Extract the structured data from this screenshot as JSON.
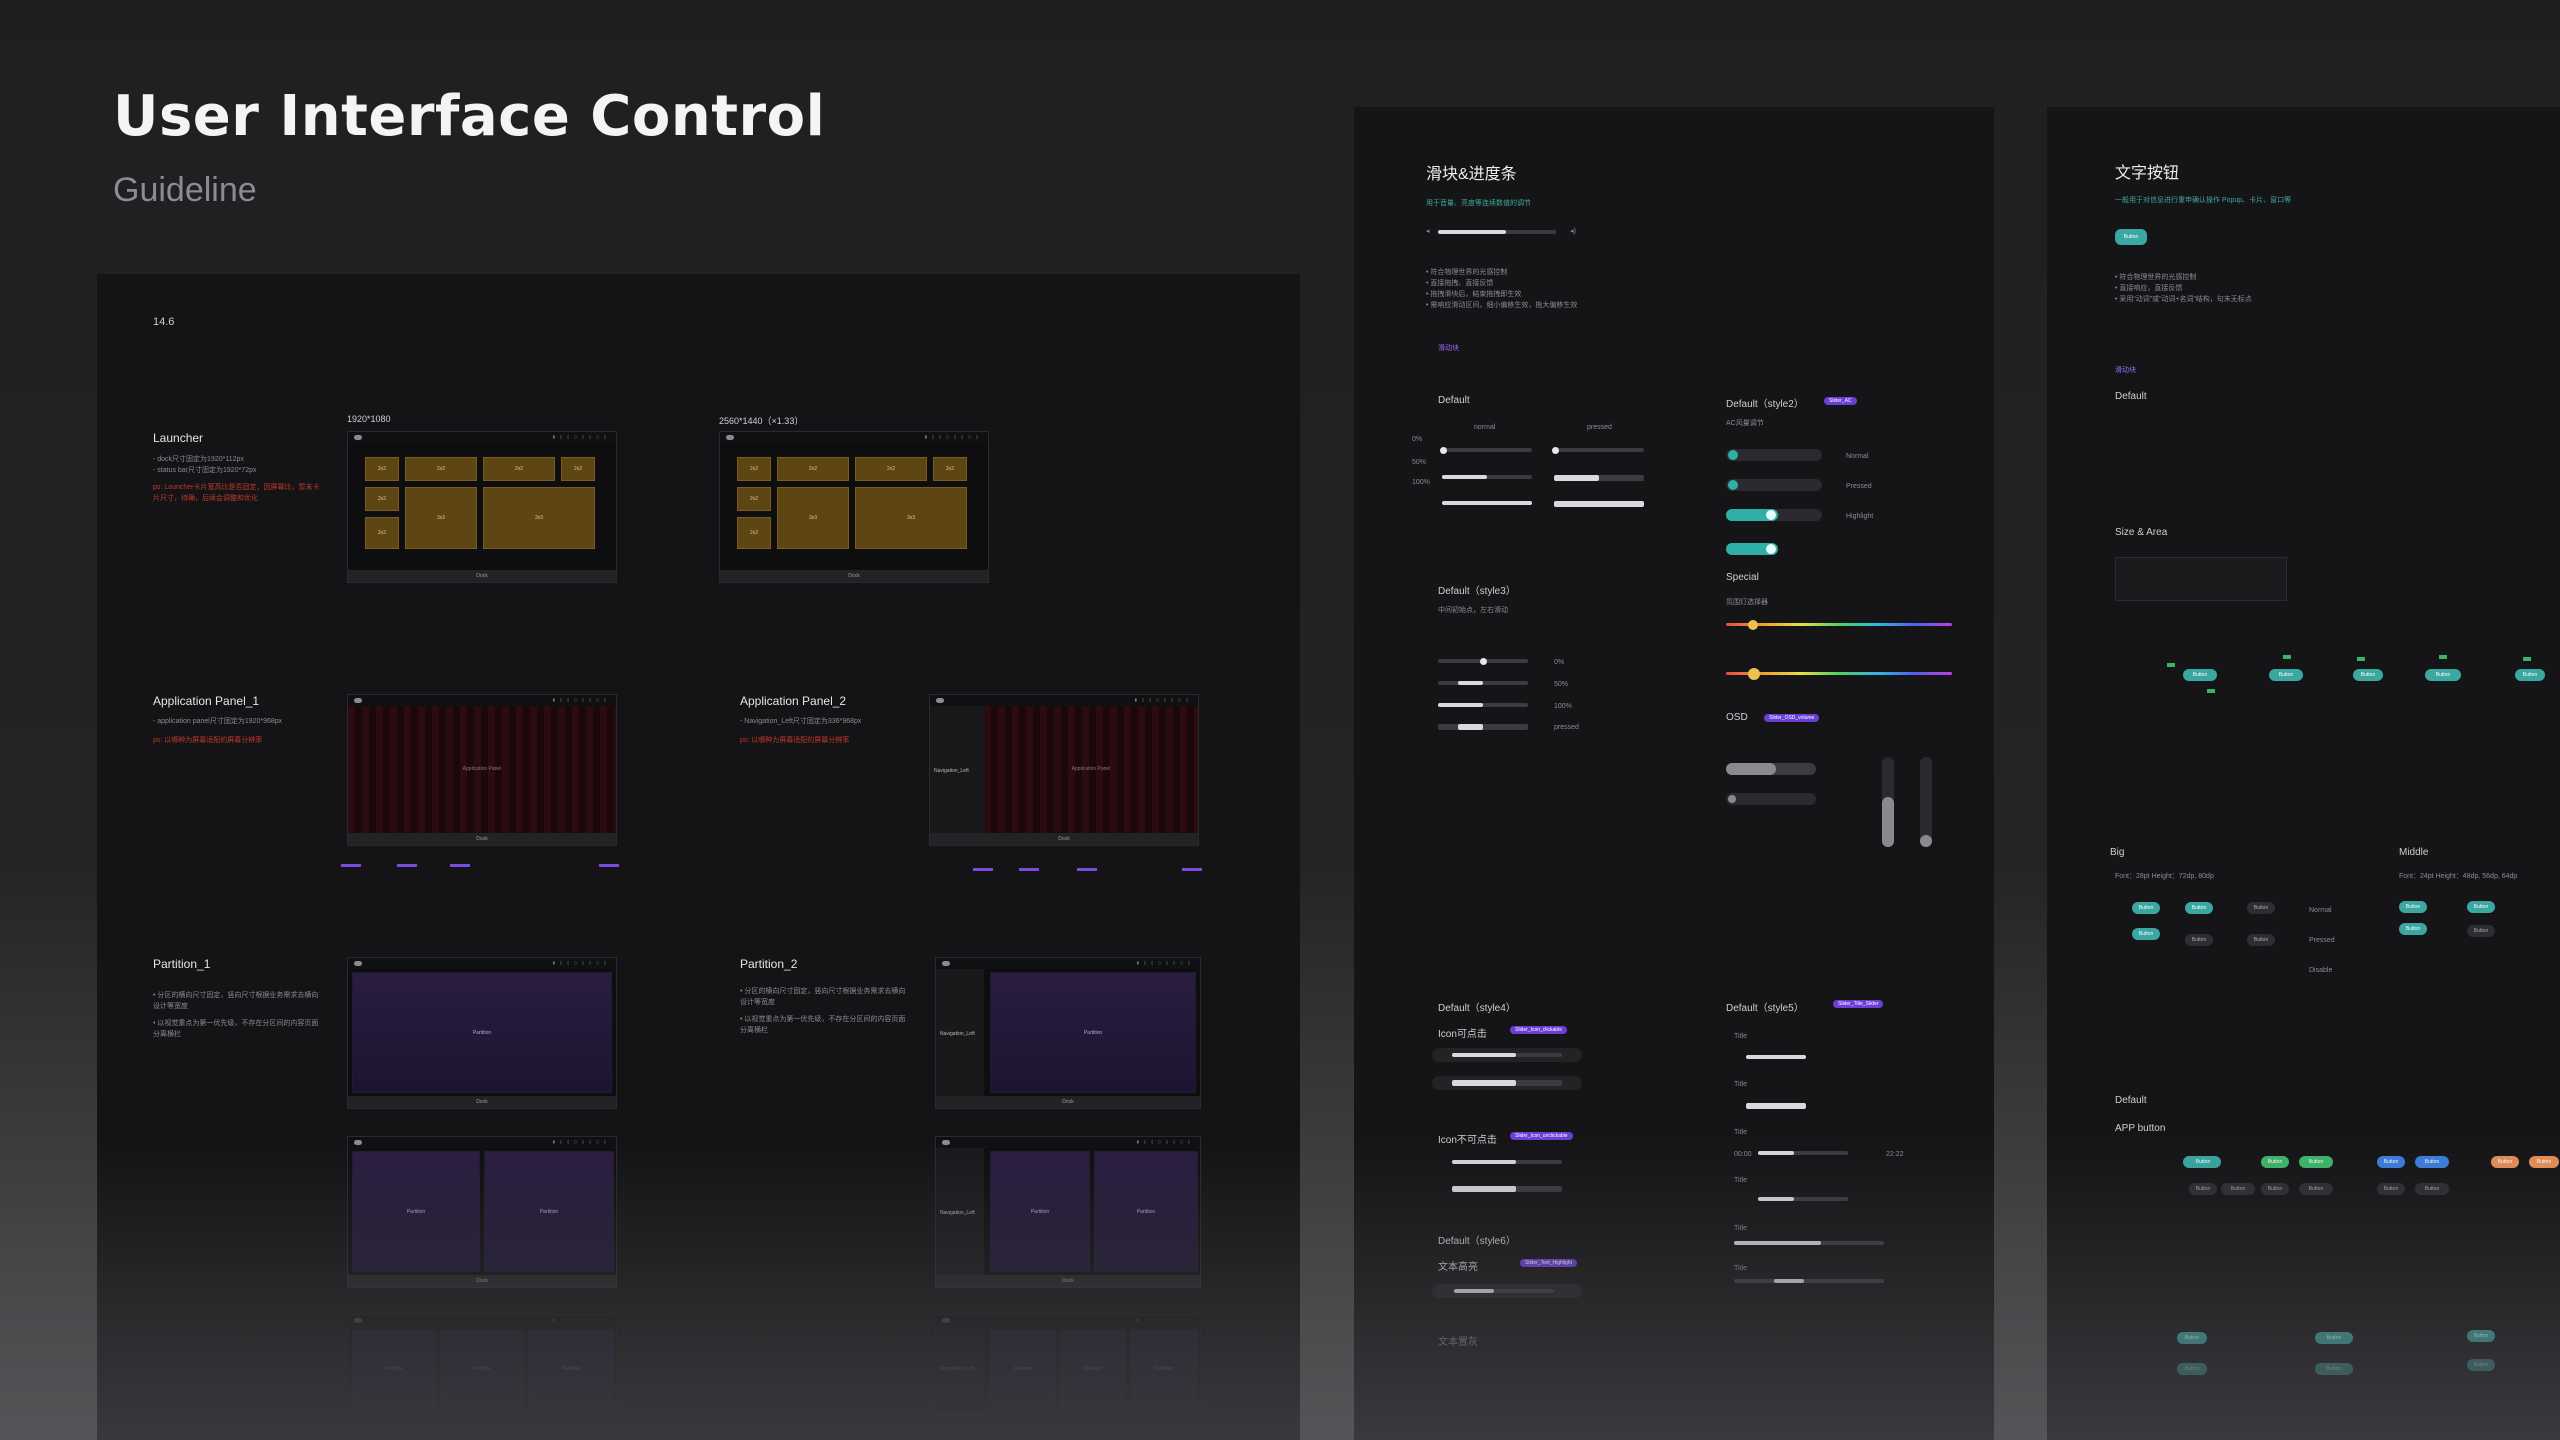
{
  "header": {
    "title": "User Interface Control",
    "subtitle": "Guideline"
  },
  "left_panel": {
    "version": "14.6",
    "res_1080": "1920*1080",
    "res_1440": "2560*1440（×1.33）",
    "sections": {
      "launcher": {
        "title": "Launcher",
        "notes": [
          "- dock尺寸固定为1920*112px",
          "- status bar尺寸固定为1920*72px"
        ],
        "warn": "ps: Launcher卡片宽高比是否固定，因屏幕比，暂未卡片尺寸，待确，后续会调整和优化"
      },
      "app_panel_1": {
        "title": "Application Panel_1",
        "notes": [
          "- application panel尺寸固定为1920*968px"
        ],
        "warn": "ps: 以哪种为屏幕适配的屏幕分辨率"
      },
      "app_panel_2": {
        "title": "Application Panel_2",
        "notes": [
          "- Navigation_Left尺寸固定为336*968px"
        ],
        "warn": "ps: 以哪种为屏幕适配的屏幕分辨率"
      },
      "partition_1": {
        "title": "Partition_1",
        "notes": [
          "• 分区的横向尺寸固定，竖向尺寸根据业务需求去横向设计等宽度",
          "• 以视觉重点为第一优先级，不存在分区间的内容页面分离横栏"
        ]
      },
      "partition_2": {
        "title": "Partition_2",
        "notes": [
          "• 分区的横向尺寸固定，竖向尺寸根据业务需求去横向设计等宽度",
          "• 以视觉重点为第一优先级，不存在分区间的内容页面分离横栏"
        ]
      }
    },
    "mock": {
      "dock": "Dock",
      "tile": "2x2",
      "tile_big": "3x3",
      "app_panel": "Application Panel",
      "partition": "Partition",
      "nav_left": "Navigation_Left"
    }
  },
  "mid_panel": {
    "title": "滑块&进度条",
    "intro": "用于音量、亮度等连续数值的调节",
    "bullets": [
      "• 符合物理世界的光感控制",
      "• 直接拖拽、直接反馈",
      "• 拖拽滑块后，结束拖拽即生效",
      "• 需响应滑动区间，细小偏移生效，拖大偏移生效"
    ],
    "link": "滑动块",
    "default": {
      "label": "Default",
      "col_normal": "normal",
      "col_pressed": "pressed",
      "rows": [
        "0%",
        "50%",
        "100%"
      ]
    },
    "style2": {
      "label": "Default（style2）",
      "tag": "Slider_AC",
      "sub": "AC风量调节",
      "states": [
        "Normal",
        "Pressed",
        "Highlight"
      ]
    },
    "style3": {
      "label": "Default（style3）",
      "sub": "中间初始点，左右滑动",
      "rows": [
        "0%",
        "50%",
        "100%",
        "pressed"
      ]
    },
    "special": {
      "label": "Special",
      "sub": "氛围灯选择器"
    },
    "osd": {
      "label": "OSD",
      "tag": "Slider_OSD_volume"
    },
    "style4": {
      "label": "Default（style4）",
      "icon_yes": "Icon可点击",
      "tag_yes": "Slider_Icon_clickable",
      "icon_no": "Icon不可点击",
      "tag_no": "Slider_Icon_unclickable"
    },
    "style5": {
      "label": "Default（style5）",
      "tag": "Slider_Title_Slider",
      "row_title": "Title",
      "time_start": "00:00",
      "time_end": "22:22"
    },
    "style6": {
      "label": "Default（style6）",
      "text_hl": "文本高亮",
      "tag": "Slider_Text_Highlight",
      "text_plain": "文本置灰"
    }
  },
  "right_panel": {
    "title": "文字按钮",
    "intro": "一般用于对信息进行重申确认操作 Popup、卡片、窗口等",
    "sample": "Button",
    "bullets": [
      "• 符合物理世界的光感控制",
      "• 直接响应，直接反馈",
      "• 采用“动词”或“动词+名词”结构，句末无标点"
    ],
    "link": "滑动块",
    "default": "Default",
    "size_area": "Size & Area",
    "col_big": "Big",
    "col_middle": "Middle",
    "big_spec": "Font：28pt  Height：72dp, 80dp",
    "mid_spec": "Font：24pt  Height：48dp, 56dp, 64dp",
    "states": [
      "Normal",
      "Pressed",
      "Disable"
    ],
    "default2": "Default",
    "app_button": "APP button"
  }
}
